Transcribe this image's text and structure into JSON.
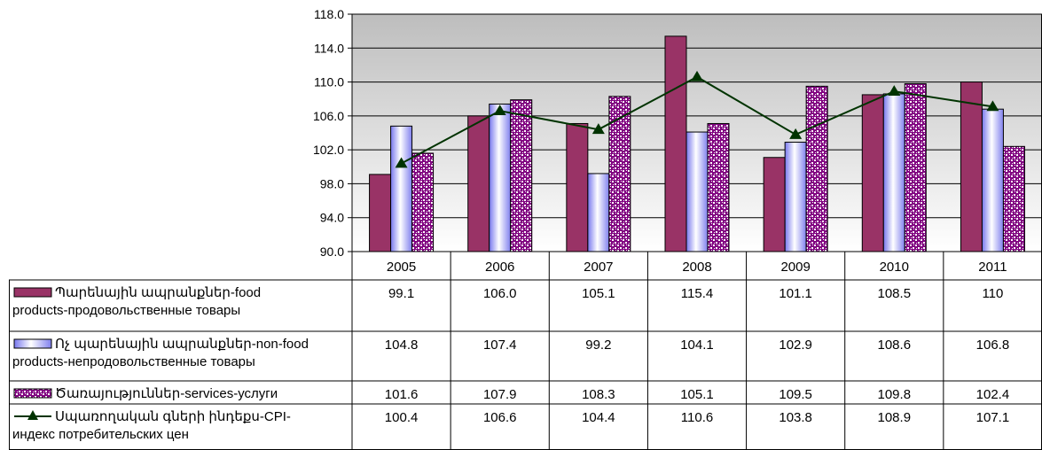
{
  "chart_data": {
    "type": "bar",
    "categories": [
      "2005",
      "2006",
      "2007",
      "2008",
      "2009",
      "2010",
      "2011"
    ],
    "ylim": [
      90.0,
      118.0
    ],
    "yticks": [
      "90.0",
      "94.0",
      "98.0",
      "102.0",
      "106.0",
      "110.0",
      "114.0",
      "118.0"
    ],
    "grid": true,
    "legend": "data-table-left",
    "series": [
      {
        "name": "Պարենային ապրանքներ-food products-продовольственные товары",
        "name_lines": [
          "Պարենային ապրանքներ-food",
          "products-продовольственные товары"
        ],
        "type": "bar",
        "color": "#993366",
        "values": [
          99.1,
          106.0,
          105.1,
          115.4,
          101.1,
          108.5,
          110
        ],
        "labels": [
          "99.1",
          "106.0",
          "105.1",
          "115.4",
          "101.1",
          "108.5",
          "110"
        ]
      },
      {
        "name": "Ոչ պարենային ապրանքներ-non-food products-непродовольственные товары",
        "name_lines": [
          "Ոչ պարենային ապրանքներ-non-food",
          "products-непродовольственные товары"
        ],
        "type": "bar",
        "color": "#9999ff",
        "values": [
          104.8,
          107.4,
          99.2,
          104.1,
          102.9,
          108.6,
          106.8
        ],
        "labels": [
          "104.8",
          "107.4",
          "99.2",
          "104.1",
          "102.9",
          "108.6",
          "106.8"
        ]
      },
      {
        "name": "Ծառայություններ-services-услуги",
        "name_lines": [
          "Ծառայություններ-services-услуги"
        ],
        "type": "bar",
        "color": "#800080",
        "values": [
          101.6,
          107.9,
          108.3,
          105.1,
          109.5,
          109.8,
          102.4
        ],
        "labels": [
          "101.6",
          "107.9",
          "108.3",
          "105.1",
          "109.5",
          "109.8",
          "102.4"
        ]
      },
      {
        "name": "Սպառողական գների ինդեքս-CPI-индекс потребительских цен",
        "name_lines": [
          "Սպառողական գների ինդեքս-CPI-",
          "индекс потребительских цен"
        ],
        "type": "line",
        "color": "#003300",
        "values": [
          100.4,
          106.6,
          104.4,
          110.6,
          103.8,
          108.9,
          107.1
        ],
        "labels": [
          "100.4",
          "106.6",
          "104.4",
          "110.6",
          "103.8",
          "108.9",
          "107.1"
        ]
      }
    ]
  }
}
